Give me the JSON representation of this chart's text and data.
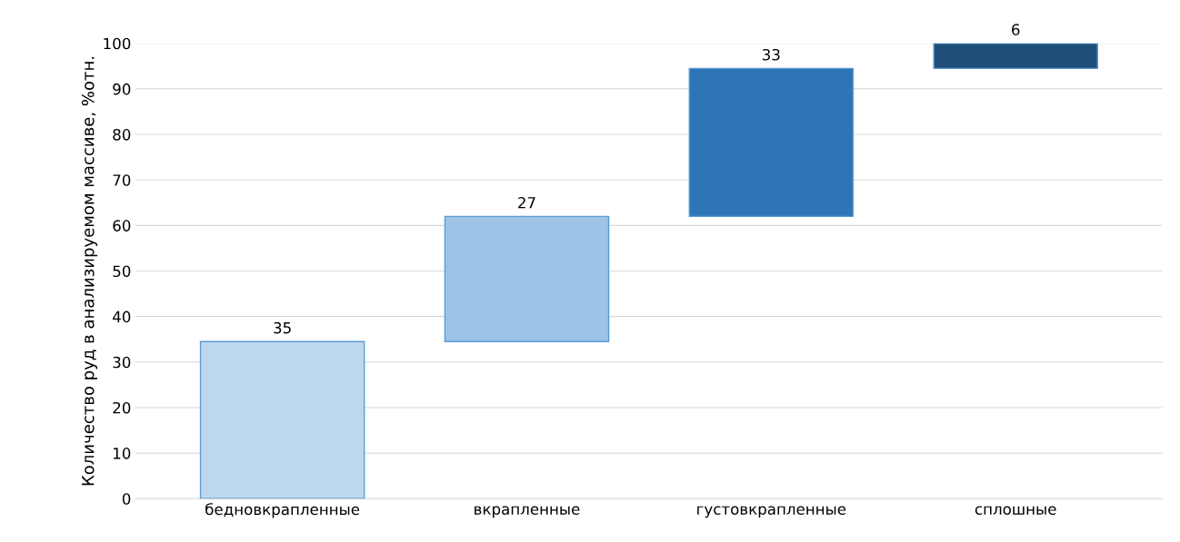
{
  "chart_data": {
    "type": "bar",
    "ylabel": "Количество руд в анализируемом массиве, %отн.",
    "categories": [
      "бедновкрапленные",
      "вкрапленные",
      "густовкрапленные",
      "сплошные"
    ],
    "values": [
      34.5,
      27.5,
      32.5,
      5.5
    ],
    "base": [
      0,
      34.5,
      62,
      94.5
    ],
    "value_labels": [
      "35",
      "27",
      "33",
      "6"
    ],
    "colors": [
      "#bdd7ee",
      "#9dc3e6",
      "#2e75b6",
      "#1f4e79"
    ],
    "ylim": [
      0,
      100
    ],
    "yticks": [
      0,
      10,
      20,
      30,
      40,
      50,
      60,
      70,
      80,
      90,
      100
    ],
    "grid": "y"
  }
}
